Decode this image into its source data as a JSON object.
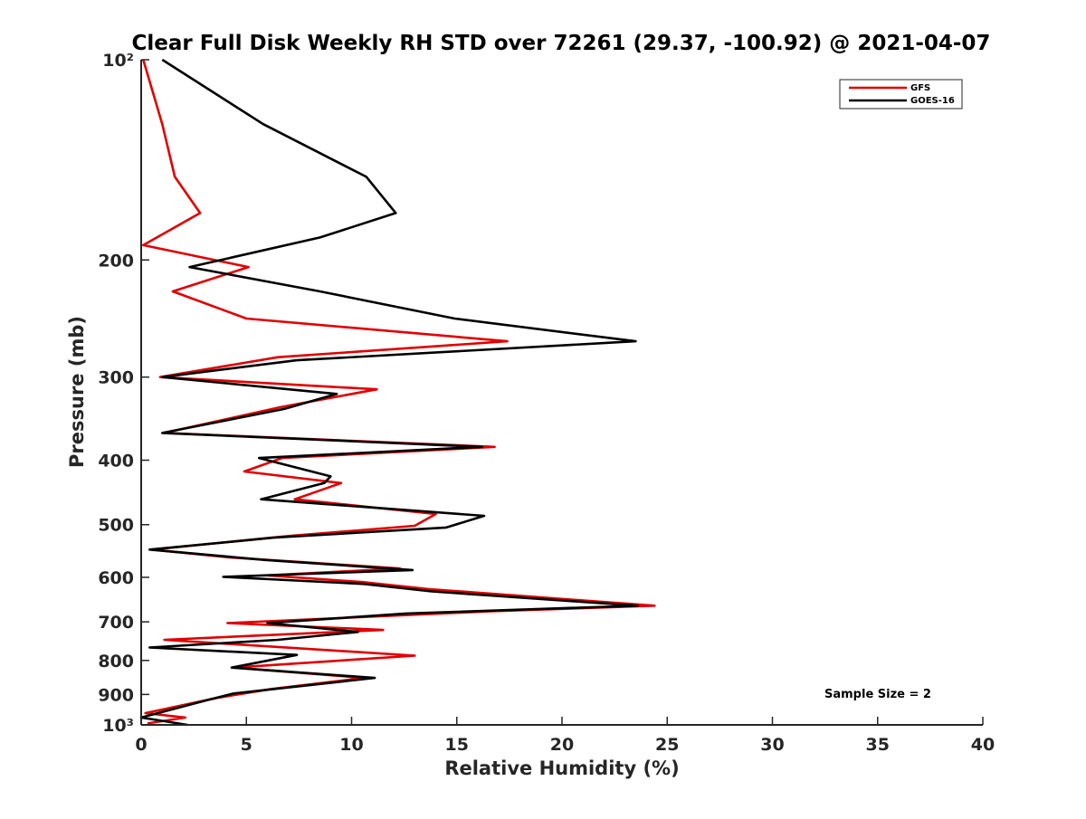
{
  "chart_data": {
    "type": "line",
    "title": "Clear Full Disk Weekly RH STD over 72261 (29.37, -100.92) @ 2021-04-07",
    "xlabel": "Relative Humidity (%)",
    "ylabel": "Pressure (mb)",
    "xlim": [
      0,
      40
    ],
    "ylim": [
      100,
      1000
    ],
    "y_scale": "log",
    "y_reversed": true,
    "x_ticks": [
      0,
      5,
      10,
      15,
      20,
      25,
      30,
      35,
      40
    ],
    "x_tick_labels": [
      "0",
      "5",
      "10",
      "15",
      "20",
      "25",
      "30",
      "35",
      "40"
    ],
    "y_ticks": [
      100,
      200,
      300,
      400,
      500,
      600,
      700,
      800,
      900,
      1000
    ],
    "y_tick_labels": [
      "10²",
      "200",
      "300",
      "400",
      "500",
      "600",
      "700",
      "800",
      "900",
      "10³"
    ],
    "grid": false,
    "legend_position": "top-right",
    "annotation": "Sample Size = 2",
    "series": [
      {
        "name": "GFS",
        "color": "#e00000",
        "points": [
          [
            0.1,
            100
          ],
          [
            1.0,
            125
          ],
          [
            1.6,
            150
          ],
          [
            2.8,
            170
          ],
          [
            0.1,
            190
          ],
          [
            5.1,
            205
          ],
          [
            1.5,
            223
          ],
          [
            5.0,
            245
          ],
          [
            17.4,
            265
          ],
          [
            6.5,
            280
          ],
          [
            0.9,
            300
          ],
          [
            11.2,
            313
          ],
          [
            6.6,
            333
          ],
          [
            1.1,
            364
          ],
          [
            16.8,
            382
          ],
          [
            6.7,
            397
          ],
          [
            4.9,
            416
          ],
          [
            9.5,
            433
          ],
          [
            7.3,
            458
          ],
          [
            14.0,
            482
          ],
          [
            13.0,
            502
          ],
          [
            7.0,
            520
          ],
          [
            0.5,
            545
          ],
          [
            4.2,
            560
          ],
          [
            12.3,
            582
          ],
          [
            6.0,
            596
          ],
          [
            10.5,
            610
          ],
          [
            13.7,
            625
          ],
          [
            24.4,
            662
          ],
          [
            16.6,
            675
          ],
          [
            4.1,
            703
          ],
          [
            11.5,
            720
          ],
          [
            1.1,
            745
          ],
          [
            13.0,
            787
          ],
          [
            4.4,
            820
          ],
          [
            10.6,
            850
          ],
          [
            6.2,
            883
          ],
          [
            3.6,
            911
          ],
          [
            0.2,
            960
          ],
          [
            2.1,
            975
          ],
          [
            0.3,
            995
          ]
        ]
      },
      {
        "name": "GOES-16",
        "color": "#000000",
        "points": [
          [
            1.0,
            100
          ],
          [
            5.8,
            125
          ],
          [
            10.7,
            150
          ],
          [
            12.1,
            170
          ],
          [
            8.5,
            185
          ],
          [
            2.3,
            205
          ],
          [
            8.5,
            223
          ],
          [
            14.9,
            245
          ],
          [
            23.5,
            265
          ],
          [
            7.4,
            283
          ],
          [
            1.0,
            300
          ],
          [
            9.3,
            318
          ],
          [
            6.8,
            335
          ],
          [
            1.0,
            364
          ],
          [
            16.2,
            382
          ],
          [
            5.6,
            397
          ],
          [
            9.0,
            423
          ],
          [
            8.7,
            433
          ],
          [
            5.7,
            458
          ],
          [
            16.3,
            485
          ],
          [
            14.5,
            505
          ],
          [
            6.3,
            523
          ],
          [
            0.4,
            545
          ],
          [
            5.9,
            565
          ],
          [
            12.9,
            585
          ],
          [
            3.9,
            599
          ],
          [
            10.6,
            614
          ],
          [
            13.8,
            630
          ],
          [
            23.6,
            662
          ],
          [
            12.6,
            680
          ],
          [
            6.0,
            703
          ],
          [
            10.3,
            725
          ],
          [
            6.5,
            745
          ],
          [
            0.4,
            765
          ],
          [
            7.4,
            785
          ],
          [
            4.3,
            820
          ],
          [
            11.1,
            850
          ],
          [
            4.4,
            897
          ],
          [
            3.2,
            917
          ],
          [
            0.0,
            975
          ],
          [
            2.2,
            1000
          ]
        ]
      }
    ]
  }
}
